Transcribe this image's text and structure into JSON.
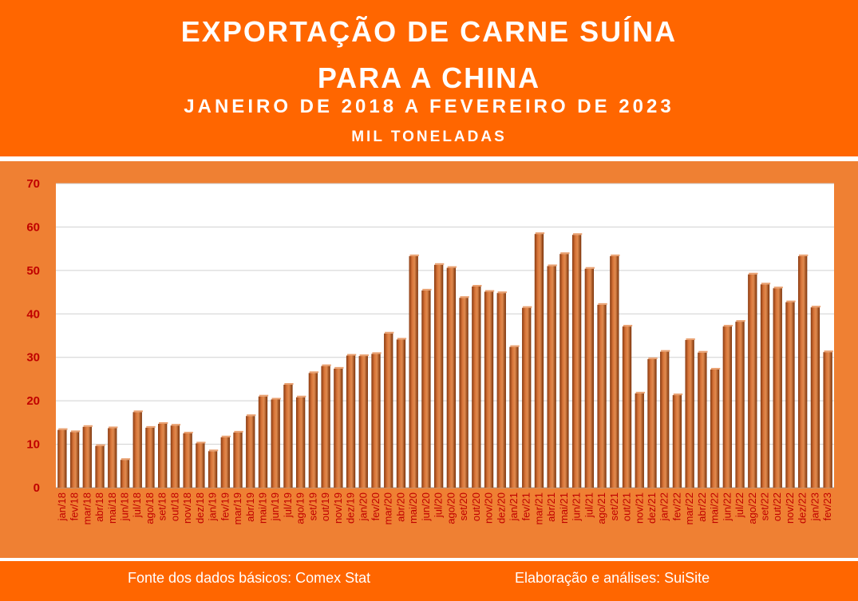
{
  "header": {
    "title_line1": "EXPORTAÇÃO DE CARNE SUÍNA",
    "title_line2": "PARA A CHINA",
    "subtitle": "JANEIRO DE 2018 A FEVEREIRO DE 2023",
    "unit": "MIL TONELADAS"
  },
  "footer": {
    "source": "Fonte dos dados básicos: Comex Stat",
    "credit": "Elaboração e análises: SuiSite"
  },
  "colors": {
    "header_bg": "#ff6600",
    "chart_bg": "#ef8033",
    "plot_bg": "#ffffff",
    "bar": "#c0581e",
    "tick_text": "#c00000"
  },
  "chart_data": {
    "type": "bar",
    "title": "EXPORTAÇÃO DE CARNE SUÍNA PARA A CHINA",
    "subtitle": "JANEIRO DE 2018 A FEVEREIRO DE 2023",
    "ylabel": "MIL TONELADAS",
    "xlabel": "",
    "ylim": [
      0,
      70
    ],
    "yticks": [
      0,
      10,
      20,
      30,
      40,
      50,
      60,
      70
    ],
    "grid": true,
    "categories": [
      "jan/18",
      "fev/18",
      "mar/18",
      "abr/18",
      "mai/18",
      "jun/18",
      "jul/18",
      "ago/18",
      "set/18",
      "out/18",
      "nov/18",
      "dez/18",
      "jan/19",
      "fev/19",
      "mar/19",
      "abr/19",
      "mai/19",
      "jun/19",
      "jul/19",
      "ago/19",
      "set/19",
      "out/19",
      "nov/19",
      "dez/19",
      "jan/20",
      "fev/20",
      "mar/20",
      "abr/20",
      "mai/20",
      "jun/20",
      "jul/20",
      "ago/20",
      "set/20",
      "out/20",
      "nov/20",
      "dez/20",
      "jan/21",
      "fev/21",
      "mar/21",
      "abr/21",
      "mai/21",
      "jun/21",
      "jul/21",
      "ago/21",
      "set/21",
      "out/21",
      "nov/21",
      "dez/21",
      "jan/22",
      "fev/22",
      "mar/22",
      "abr/22",
      "mai/22",
      "jun/22",
      "jul/22",
      "ago/22",
      "set/22",
      "out/22",
      "nov/22",
      "dez/22",
      "jan/23",
      "fev/23"
    ],
    "values": [
      13.3,
      12.8,
      14.0,
      9.6,
      13.7,
      6.4,
      17.4,
      13.8,
      14.7,
      14.3,
      12.5,
      10.2,
      8.4,
      11.6,
      12.7,
      16.5,
      21.0,
      20.3,
      23.7,
      20.8,
      26.4,
      28.0,
      27.4,
      30.4,
      30.3,
      30.8,
      35.5,
      34.1,
      53.3,
      45.4,
      51.3,
      50.6,
      43.7,
      46.3,
      45.1,
      44.8,
      32.4,
      41.4,
      58.4,
      51.0,
      53.8,
      58.2,
      50.4,
      42.1,
      53.3,
      37.1,
      21.7,
      29.6,
      31.3,
      21.3,
      34.0,
      31.1,
      27.2,
      37.1,
      38.2,
      49.1,
      46.8,
      45.9,
      42.7,
      53.3,
      41.5,
      31.2
    ]
  }
}
